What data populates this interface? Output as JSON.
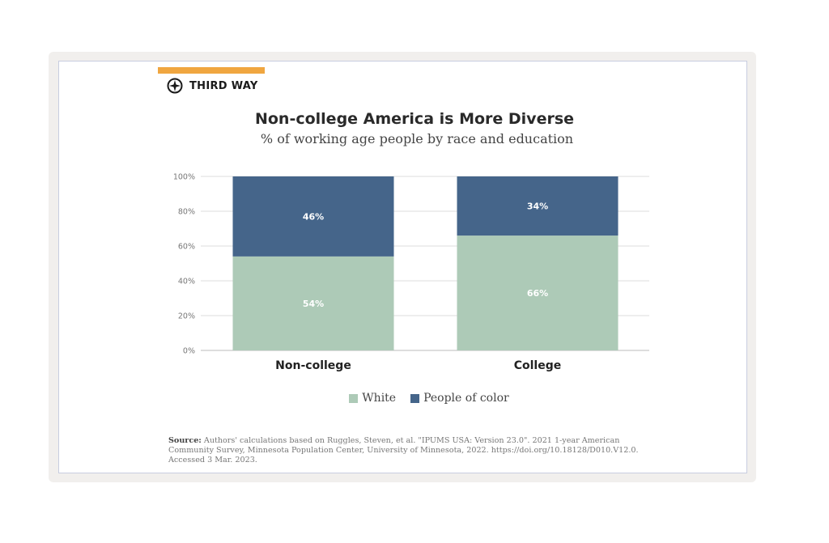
{
  "brand": {
    "name": "THIRD WAY",
    "accent_color": "#f0a640"
  },
  "chart_data": {
    "type": "bar",
    "stacked": true,
    "title": "Non-college America is More Diverse",
    "subtitle": "% of working age people by race and education",
    "categories": [
      "Non-college",
      "College"
    ],
    "series": [
      {
        "name": "White",
        "values": [
          54,
          66
        ],
        "labels": [
          "54%",
          "66%"
        ],
        "color": "#adcab7"
      },
      {
        "name": "People of color",
        "values": [
          46,
          34
        ],
        "labels": [
          "46%",
          "34%"
        ],
        "color": "#45658a"
      }
    ],
    "yticks": [
      "0%",
      "20%",
      "40%",
      "60%",
      "80%",
      "100%"
    ],
    "ylim": [
      0,
      100
    ],
    "grid": true,
    "legend": "bottom"
  },
  "source": {
    "label": "Source:",
    "text": " Authors' calculations based on Ruggles, Steven, et al. \"IPUMS USA: Version 23.0\". 2021 1-year American Community Survey, Minnesota Population Center, University of Minnesota, 2022. https://doi.org/10.18128/D010.V12.0. Accessed 3 Mar. 2023."
  }
}
